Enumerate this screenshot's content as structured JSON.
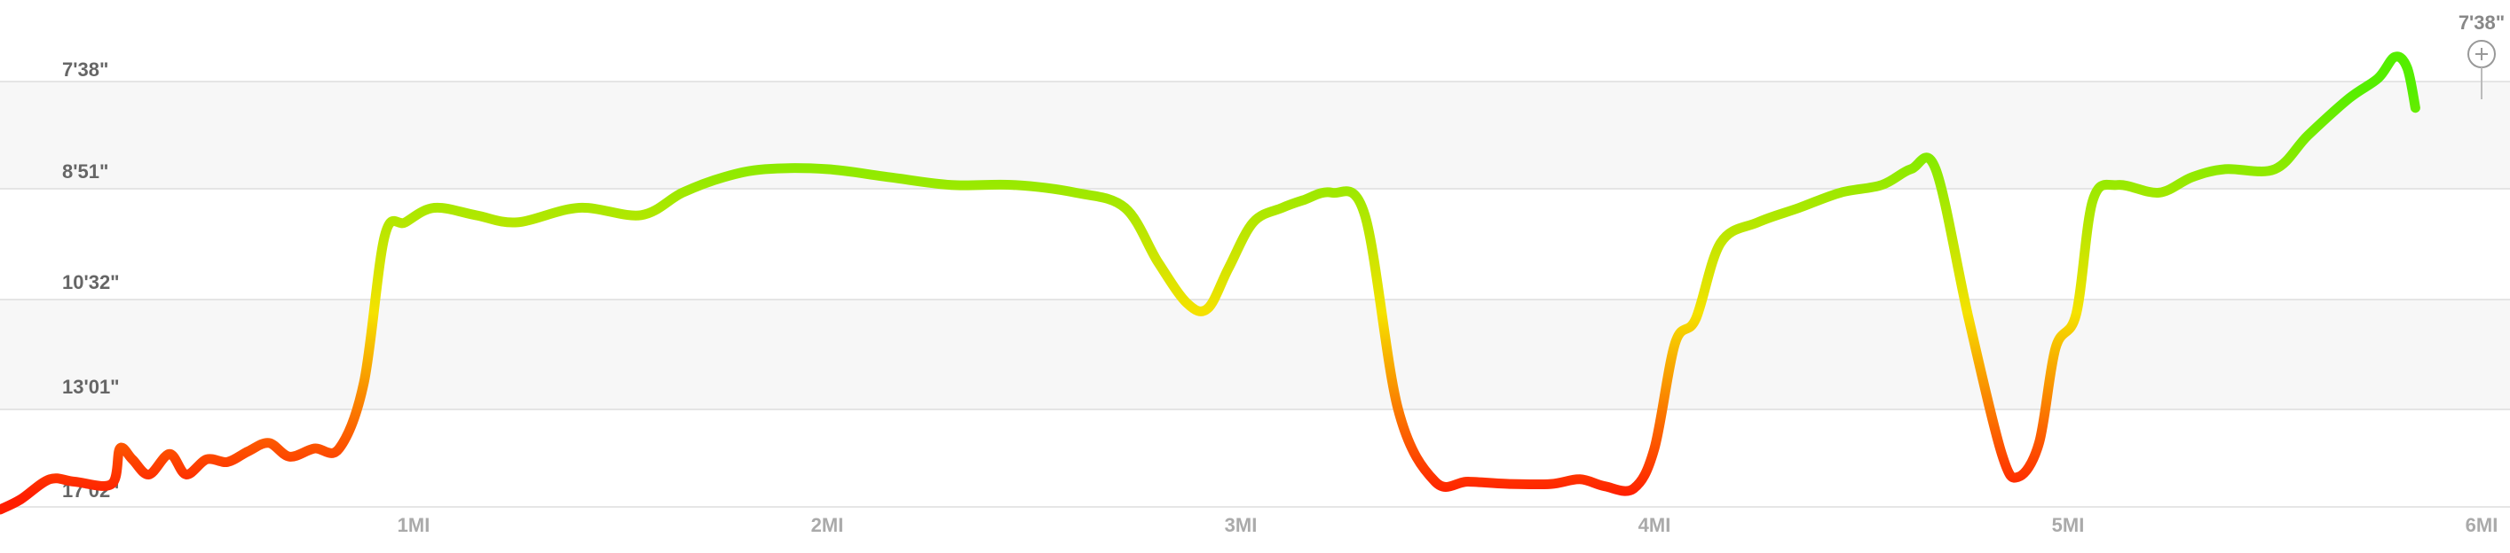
{
  "chart_data": {
    "type": "line",
    "x_unit": "MI",
    "xlim": [
      0,
      6
    ],
    "y_pace_ticks": [
      "7'38\"",
      "8'51\"",
      "10'32\"",
      "13'01\"",
      "17'02\""
    ],
    "x_ticks": [
      {
        "value": 1,
        "label": "1MI"
      },
      {
        "value": 2,
        "label": "2MI"
      },
      {
        "value": 3,
        "label": "3MI"
      },
      {
        "value": 4,
        "label": "4MI"
      },
      {
        "value": 5,
        "label": "5MI"
      },
      {
        "value": 6,
        "label": "6MI"
      }
    ],
    "grid": true,
    "color_scale": {
      "slow": "#ff2200",
      "mid": "#f0e000",
      "fast": "#55ee00"
    },
    "max_marker": {
      "label": "7'38\"",
      "icon": "plus-circle-icon",
      "x": 6.0
    },
    "series": [
      {
        "pace_min_per_mi": [
          [
            0.0,
            16.9
          ],
          [
            0.05,
            16.4
          ],
          [
            0.12,
            15.5
          ],
          [
            0.18,
            15.6
          ],
          [
            0.27,
            15.7
          ],
          [
            0.29,
            14.3
          ],
          [
            0.32,
            14.7
          ],
          [
            0.36,
            15.3
          ],
          [
            0.41,
            14.5
          ],
          [
            0.45,
            15.3
          ],
          [
            0.5,
            14.7
          ],
          [
            0.55,
            14.8
          ],
          [
            0.6,
            14.4
          ],
          [
            0.65,
            14.1
          ],
          [
            0.7,
            14.6
          ],
          [
            0.76,
            14.3
          ],
          [
            0.82,
            14.3
          ],
          [
            0.88,
            12.3
          ],
          [
            0.93,
            9.5
          ],
          [
            0.98,
            9.3
          ],
          [
            1.05,
            9.1
          ],
          [
            1.15,
            9.2
          ],
          [
            1.25,
            9.3
          ],
          [
            1.4,
            9.1
          ],
          [
            1.55,
            9.2
          ],
          [
            1.65,
            8.9
          ],
          [
            1.75,
            8.7
          ],
          [
            1.85,
            8.6
          ],
          [
            2.0,
            8.6
          ],
          [
            2.15,
            8.7
          ],
          [
            2.3,
            8.8
          ],
          [
            2.45,
            8.8
          ],
          [
            2.6,
            8.9
          ],
          [
            2.72,
            9.1
          ],
          [
            2.8,
            9.9
          ],
          [
            2.87,
            10.6
          ],
          [
            2.92,
            10.7
          ],
          [
            2.97,
            10.0
          ],
          [
            3.03,
            9.3
          ],
          [
            3.1,
            9.1
          ],
          [
            3.15,
            9.0
          ],
          [
            3.22,
            8.9
          ],
          [
            3.3,
            9.2
          ],
          [
            3.38,
            13.0
          ],
          [
            3.47,
            15.6
          ],
          [
            3.55,
            15.6
          ],
          [
            3.65,
            15.7
          ],
          [
            3.75,
            15.7
          ],
          [
            3.82,
            15.5
          ],
          [
            3.88,
            15.8
          ],
          [
            3.95,
            15.9
          ],
          [
            4.0,
            14.3
          ],
          [
            4.05,
            11.4
          ],
          [
            4.1,
            10.9
          ],
          [
            4.16,
            9.6
          ],
          [
            4.25,
            9.3
          ],
          [
            4.35,
            9.1
          ],
          [
            4.45,
            8.9
          ],
          [
            4.55,
            8.8
          ],
          [
            4.62,
            8.6
          ],
          [
            4.68,
            8.6
          ],
          [
            4.76,
            10.9
          ],
          [
            4.84,
            14.5
          ],
          [
            4.88,
            15.4
          ],
          [
            4.93,
            14.1
          ],
          [
            4.97,
            11.5
          ],
          [
            5.02,
            10.8
          ],
          [
            5.06,
            9.0
          ],
          [
            5.12,
            8.8
          ],
          [
            5.22,
            8.9
          ],
          [
            5.3,
            8.7
          ],
          [
            5.38,
            8.6
          ],
          [
            5.5,
            8.6
          ],
          [
            5.58,
            8.2
          ],
          [
            5.68,
            7.8
          ],
          [
            5.75,
            7.6
          ],
          [
            5.79,
            7.4
          ],
          [
            5.82,
            7.5
          ],
          [
            5.84,
            7.9
          ]
        ]
      }
    ]
  }
}
